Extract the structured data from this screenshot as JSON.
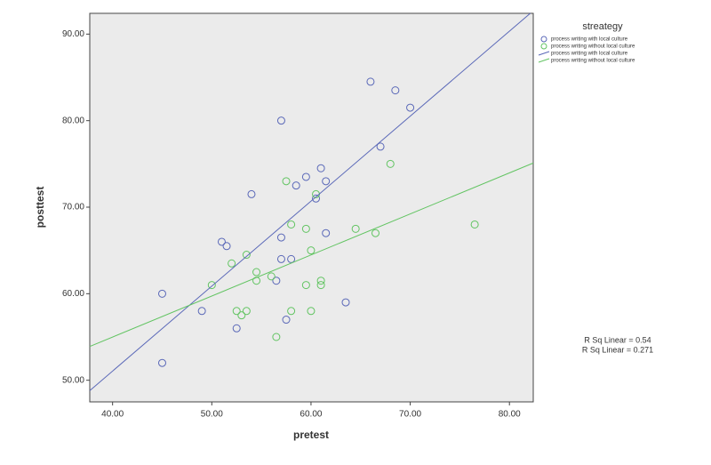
{
  "chart_data": {
    "type": "scatter",
    "x_label": "pretest",
    "y_label": "posttest",
    "legend_title": "streategy",
    "xlim": [
      37.7,
      82.4
    ],
    "ylim": [
      47.5,
      92.4
    ],
    "xticks": [
      {
        "value": 40,
        "label": "40.00"
      },
      {
        "value": 50,
        "label": "50.00"
      },
      {
        "value": 60,
        "label": "60.00"
      },
      {
        "value": 70,
        "label": "70.00"
      },
      {
        "value": 80,
        "label": "80.00"
      }
    ],
    "yticks": [
      {
        "value": 50,
        "label": "50.00"
      },
      {
        "value": 60,
        "label": "60.00"
      },
      {
        "value": 70,
        "label": "70.00"
      },
      {
        "value": 80,
        "label": "80.00"
      },
      {
        "value": 90,
        "label": "90.00"
      }
    ],
    "series": [
      {
        "name": "process writing with local culture",
        "color": "#5a68b8",
        "x": [
          45,
          45,
          49,
          52.5,
          51,
          51.5,
          54,
          57,
          57,
          57,
          58,
          56.5,
          57.5,
          58.5,
          59.5,
          61,
          61.5,
          60.5,
          61.5,
          63.5,
          66,
          68.5,
          70,
          67
        ],
        "values": [
          52,
          60,
          58,
          56,
          66,
          65.5,
          71.5,
          80,
          66.5,
          64,
          64,
          61.5,
          57,
          72.5,
          73.5,
          74.5,
          73,
          71,
          67,
          59,
          84.5,
          83.5,
          81.5,
          77
        ]
      },
      {
        "name": "process writing without local culture",
        "color": "#62c462",
        "x": [
          50,
          52,
          53.5,
          52.5,
          53,
          53.5,
          54.5,
          54.5,
          56,
          56.5,
          57.5,
          58,
          58,
          59.5,
          59.5,
          60,
          60,
          60.5,
          61,
          61,
          64.5,
          66.5,
          68,
          76.5
        ],
        "values": [
          61,
          63.5,
          64.5,
          58,
          57.5,
          58,
          62.5,
          61.5,
          62,
          55,
          73,
          68,
          58,
          61,
          67.5,
          65,
          58,
          71.5,
          61.5,
          61,
          67.5,
          67,
          75,
          68
        ]
      }
    ],
    "fit_lines": [
      {
        "name": "process writing with local culture",
        "color": "#5a68b8",
        "x": [
          37.7,
          82.1
        ],
        "values": [
          48.8,
          92.4
        ]
      },
      {
        "name": "process writing without local culture",
        "color": "#62c462",
        "x": [
          37.7,
          82.4
        ],
        "values": [
          53.9,
          75.1
        ]
      }
    ],
    "annotations": [
      "R Sq Linear = 0.54",
      "R Sq Linear = 0.271"
    ]
  }
}
